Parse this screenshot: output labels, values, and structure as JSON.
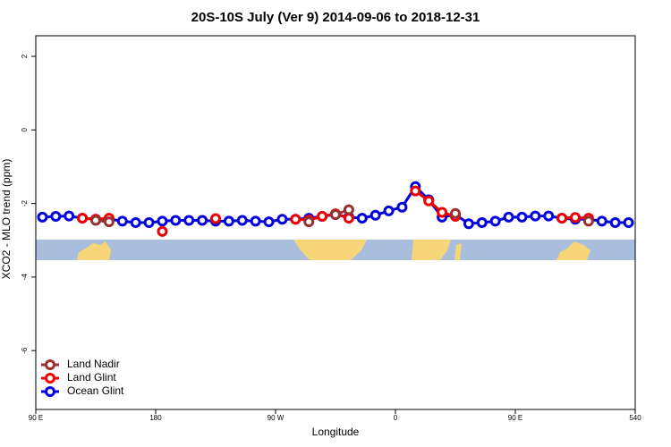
{
  "chart_data": {
    "type": "line",
    "title": "20S-10S July (Ver 9)   2014-09-06 to 2018-12-31",
    "x_label": "Longitude",
    "y_label": "XCO2 - MLO trend (ppm)",
    "xlim": [
      90,
      540
    ],
    "ylim": [
      -7.6,
      2.56
    ],
    "xticks": [
      {
        "value": 90,
        "label": "90 E"
      },
      180,
      {
        "value": 270,
        "label": "90 W"
      },
      {
        "value": 360,
        "label": "0"
      },
      {
        "value": 450,
        "label": "90 E"
      },
      540
    ],
    "yticks": [
      2,
      0,
      -2,
      -4,
      -6
    ],
    "legend": "bottom-left",
    "x": [
      95,
      105,
      115,
      125,
      135,
      145,
      155,
      165,
      175,
      185,
      195,
      205,
      215,
      225,
      235,
      245,
      255,
      265,
      275,
      285,
      295,
      305,
      315,
      325,
      335,
      345,
      355,
      365,
      375,
      385,
      395,
      405,
      415,
      425,
      435,
      445,
      455,
      465,
      475,
      485,
      495,
      505,
      515,
      525,
      535
    ],
    "series": [
      {
        "name": "Land Nadir",
        "color": "#963232",
        "values": [
          null,
          null,
          null,
          null,
          -2.46,
          -2.5,
          null,
          null,
          null,
          null,
          null,
          null,
          null,
          null,
          null,
          null,
          null,
          null,
          null,
          null,
          -2.5,
          null,
          -2.3,
          -2.17,
          null,
          null,
          null,
          null,
          null,
          null,
          null,
          -2.27,
          null,
          null,
          null,
          null,
          null,
          null,
          null,
          null,
          null,
          -2.48,
          null,
          null,
          null
        ]
      },
      {
        "name": "Land Glint",
        "color": "#ee0000",
        "values": [
          null,
          null,
          null,
          -2.4,
          -2.43,
          -2.4,
          null,
          null,
          null,
          -2.76,
          null,
          null,
          null,
          -2.41,
          null,
          null,
          null,
          null,
          null,
          -2.43,
          -2.45,
          -2.35,
          -2.28,
          -2.4,
          null,
          null,
          null,
          null,
          -1.66,
          -1.93,
          -2.24,
          -2.35,
          null,
          null,
          null,
          null,
          null,
          null,
          null,
          -2.4,
          -2.38,
          -2.4,
          null,
          null,
          null
        ]
      },
      {
        "name": "Ocean Glint",
        "color": "#0000dd",
        "values": [
          -2.37,
          -2.35,
          -2.34,
          -2.4,
          -2.43,
          -2.42,
          -2.48,
          -2.52,
          -2.52,
          -2.48,
          -2.46,
          -2.46,
          -2.46,
          -2.48,
          -2.48,
          -2.46,
          -2.48,
          -2.5,
          -2.43,
          -2.43,
          -2.4,
          -2.35,
          -2.3,
          -2.37,
          -2.4,
          -2.32,
          -2.2,
          -2.1,
          -1.54,
          -1.9,
          -2.37,
          -2.3,
          -2.55,
          -2.52,
          -2.48,
          -2.37,
          -2.37,
          -2.34,
          -2.34,
          -2.4,
          -2.43,
          -2.43,
          -2.48,
          -2.52,
          -2.52
        ]
      }
    ]
  }
}
